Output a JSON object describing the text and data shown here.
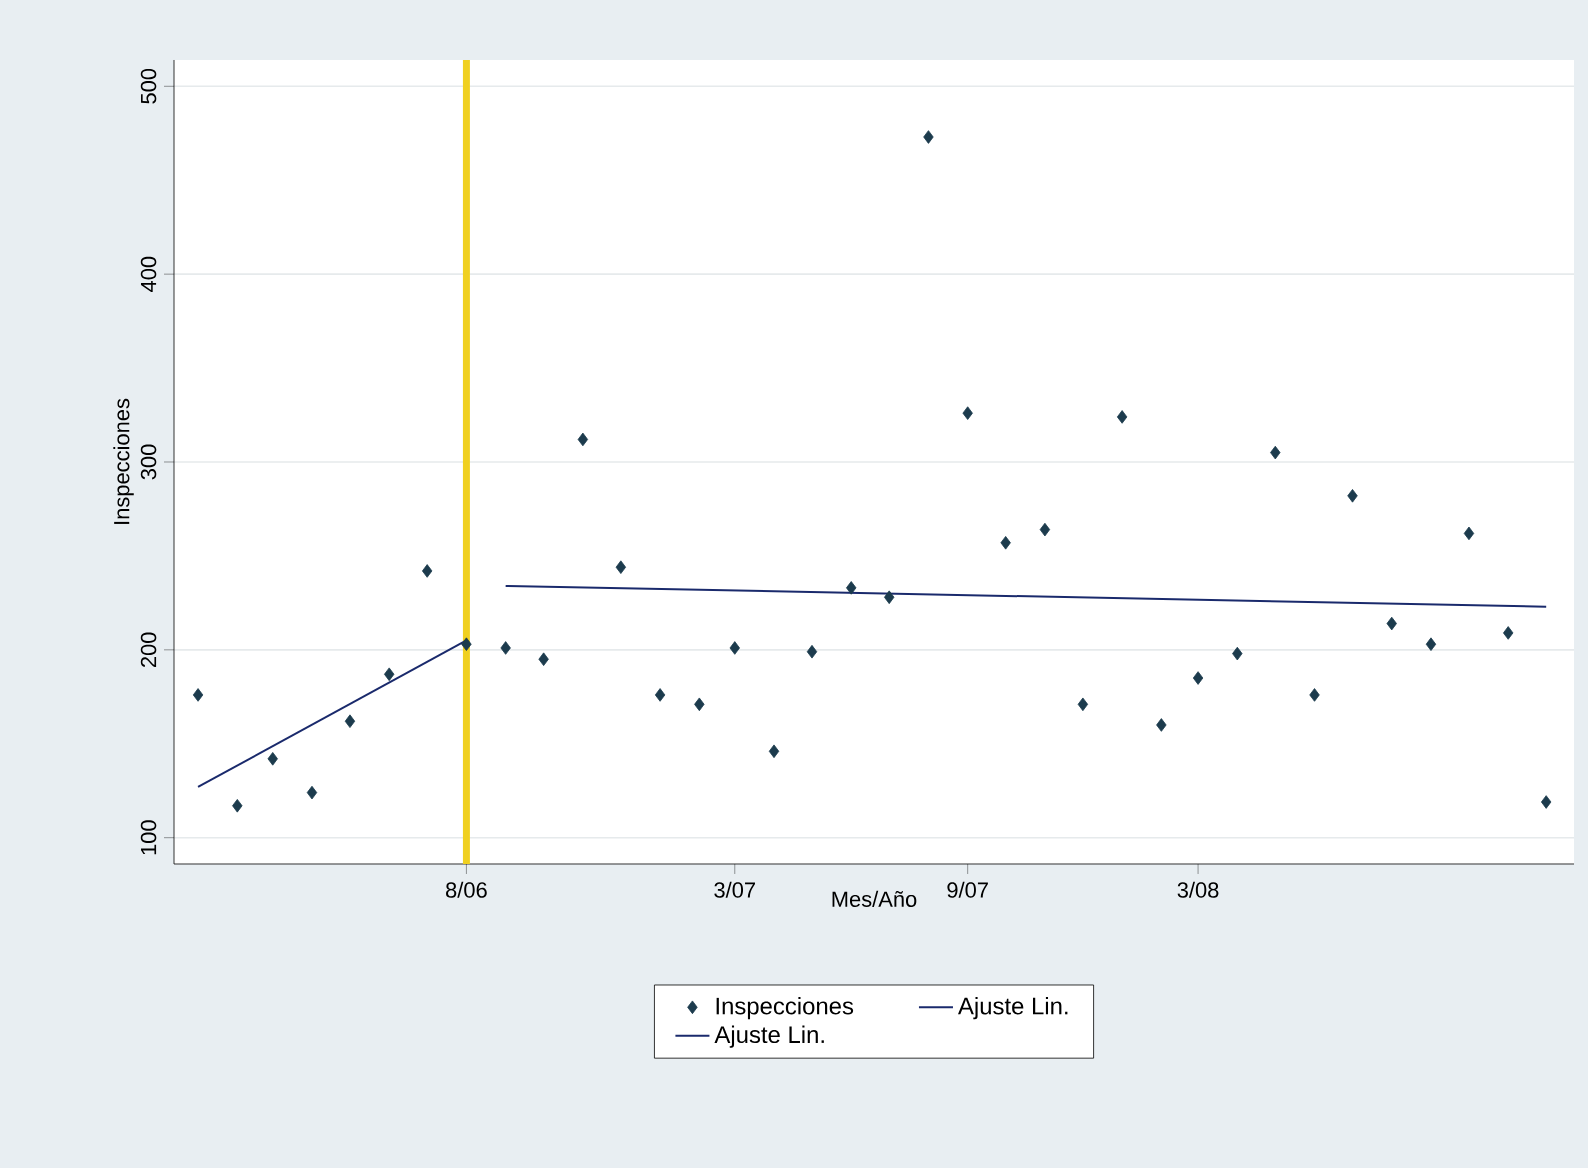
{
  "chart_data": {
    "type": "scatter",
    "xlabel": "Mes/Año",
    "ylabel": "Inspecciones",
    "xlim": [
      "2005-12-13",
      "2008-12-23"
    ],
    "ylim": [
      86,
      514
    ],
    "xticks": [
      {
        "value": "2006-08",
        "label": "8/06"
      },
      {
        "value": "2007-03",
        "label": "3/07"
      },
      {
        "value": "2007-09",
        "label": "9/07"
      },
      {
        "value": "2008-03",
        "label": "3/08"
      }
    ],
    "yticks": [
      100,
      200,
      300,
      400,
      500
    ],
    "grid": "y",
    "legend": "bottom",
    "x": [
      "2006-01",
      "2006-02",
      "2006-03",
      "2006-04",
      "2006-05",
      "2006-06",
      "2006-07",
      "2006-08",
      "2006-09",
      "2006-10",
      "2006-11",
      "2006-12",
      "2007-01",
      "2007-02",
      "2007-03",
      "2007-04",
      "2007-05",
      "2007-06",
      "2007-07",
      "2007-08",
      "2007-09",
      "2007-10",
      "2007-11",
      "2007-12",
      "2008-01",
      "2008-02",
      "2008-03",
      "2008-04",
      "2008-05",
      "2008-06",
      "2008-07",
      "2008-08",
      "2008-09",
      "2008-10",
      "2008-11",
      "2008-12"
    ],
    "series": [
      {
        "name": "Inspecciones",
        "color": "#1c3b4d",
        "marker": "diamond",
        "values": [
          176,
          117,
          142,
          124,
          162,
          187,
          242,
          203,
          201,
          195,
          312,
          244,
          176,
          171,
          201,
          146,
          199,
          233,
          228,
          473,
          326,
          257,
          264,
          171,
          324,
          160,
          185,
          198,
          305,
          176,
          282,
          214,
          203,
          262,
          209,
          119
        ]
      },
      {
        "name": "Ajuste Lin.",
        "type": "line",
        "color": "#1a2a6c",
        "marker": "none",
        "x": [
          "2006-01",
          "2006-08"
        ],
        "values": [
          127,
          205
        ]
      },
      {
        "name": "Ajuste Lin.",
        "type": "line",
        "color": "#1a2a6c",
        "marker": "none",
        "x": [
          "2006-09",
          "2008-12"
        ],
        "values": [
          234,
          223
        ]
      }
    ],
    "ref_lines": [
      {
        "axis": "x",
        "value": "2006-08",
        "color": "#f0d020"
      }
    ]
  }
}
